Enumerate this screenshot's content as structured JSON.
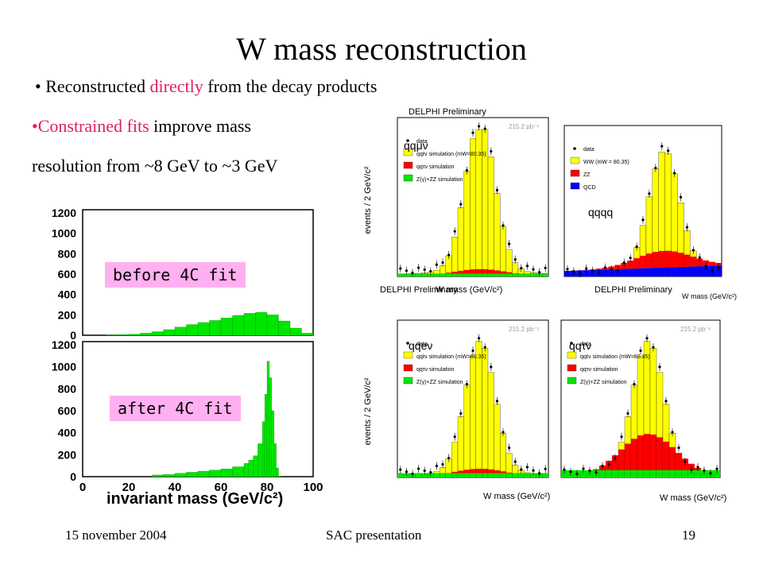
{
  "slide": {
    "title": "W mass reconstruction",
    "bullet1": {
      "prefix": "• Reconstructed ",
      "highlight": "directly",
      "suffix": " from the decay products"
    },
    "bullet2": {
      "prefix": "•",
      "highlight": "Constrained fits",
      "suffix": " improve mass"
    },
    "bullet2_line2": "resolution from ~8 GeV to ~3 GeV",
    "footer_date": "15 november 2004",
    "footer_center": "SAC presentation",
    "page_number": "19"
  },
  "left_panel": {
    "label_before": "before 4C fit",
    "label_after": "after 4C fit",
    "xlabel": "invariant mass (GeV/c²)",
    "y_ticks": [
      "0",
      "200",
      "400",
      "600",
      "800",
      "1000",
      "1200"
    ],
    "x_ticks": [
      "0",
      "20",
      "40",
      "60",
      "80",
      "100"
    ],
    "bar_color": "#00e600"
  },
  "delphi": {
    "heading": "DELPHI Preliminary",
    "ylabel": "events / 2 GeV/c²",
    "xlabel": "W mass (GeV/c²)",
    "lumi": "215.2 pb⁻¹",
    "channels": {
      "qqmv": "qqμν",
      "qqqq": "qqqq",
      "qqev": "qqeν",
      "qqtv": "qqτν"
    },
    "legend_lep": [
      "data",
      "qqℓν simulation (mW=80.35)",
      "qqτν simulation",
      "Z(γ)+ZZ simulation"
    ],
    "legend_qqqq": [
      "data",
      "WW (mW = 80.35)",
      "ZZ",
      "QCD"
    ],
    "colors": {
      "ww": "#ffff00",
      "zz": "#ff0000",
      "qcd": "#0000ff",
      "z": "#00e600"
    }
  },
  "chart_data": [
    {
      "type": "bar",
      "title": "before 4C fit",
      "xlabel": "invariant mass (GeV/c²)",
      "ylim": [
        0,
        1200
      ],
      "x": [
        5,
        10,
        15,
        20,
        25,
        30,
        35,
        40,
        45,
        50,
        55,
        60,
        65,
        70,
        75,
        80,
        85,
        90,
        95
      ],
      "values": [
        0,
        2,
        5,
        10,
        20,
        35,
        55,
        80,
        105,
        125,
        145,
        170,
        195,
        215,
        225,
        200,
        140,
        70,
        20
      ]
    },
    {
      "type": "bar",
      "title": "after 4C fit",
      "xlabel": "invariant mass (GeV/c²)",
      "ylim": [
        0,
        1200
      ],
      "x": [
        30,
        35,
        40,
        45,
        50,
        55,
        60,
        65,
        70,
        72,
        74,
        76,
        78,
        79,
        80,
        81,
        82,
        83,
        84,
        85
      ],
      "values": [
        15,
        20,
        30,
        40,
        50,
        60,
        70,
        90,
        120,
        150,
        190,
        300,
        500,
        750,
        1050,
        900,
        600,
        300,
        80,
        5
      ]
    }
  ]
}
